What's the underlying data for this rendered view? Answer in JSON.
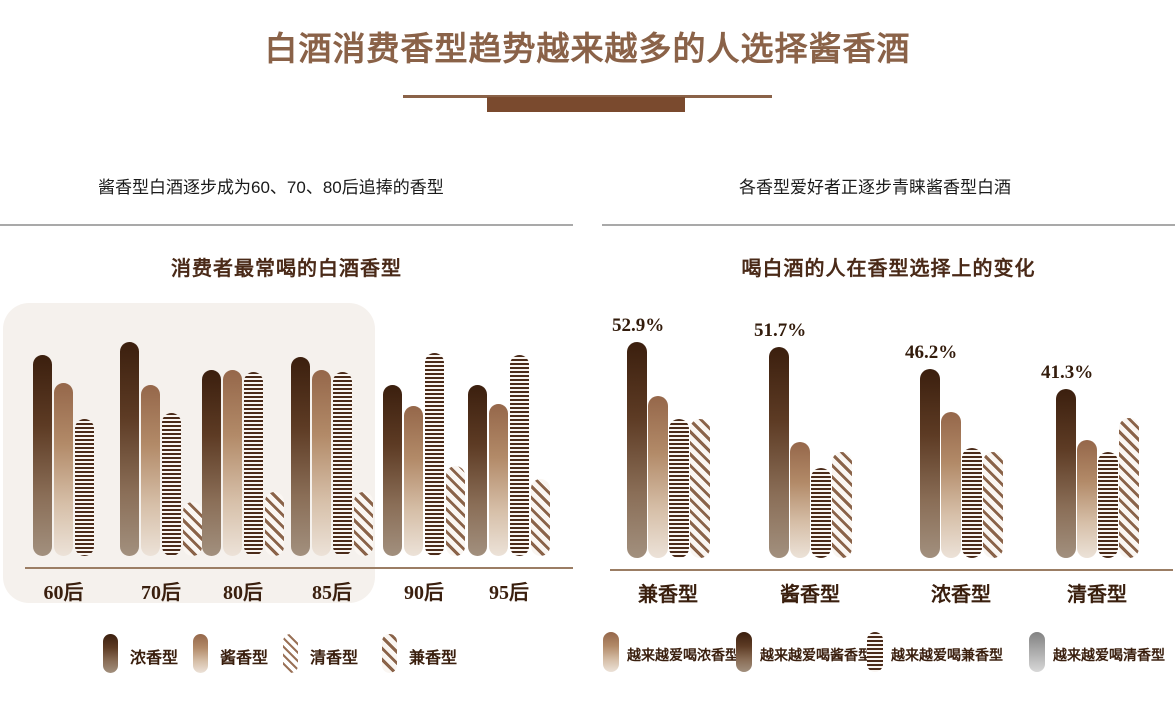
{
  "title": "白酒消费香型趋势越来越多的人选择酱香酒",
  "colors": {
    "accent": "#8a6248",
    "divider_block": "#7a4a2e",
    "chart_title": "#4a2a18",
    "category_label": "#3a1f0e",
    "highlight_bg": "#f5f1ed",
    "axis": "#9b7d64",
    "top_rule": "#a9a9a9"
  },
  "left_panel": {
    "subtitle": "酱香型白酒逐步成为60、70、80后追捧的香型",
    "chart_title": "消费者最常喝的白酒香型",
    "legend": [
      {
        "label": "浓香型",
        "style": "dark"
      },
      {
        "label": "酱香型",
        "style": "light"
      },
      {
        "label": "清香型",
        "style": "dstripe-thin"
      },
      {
        "label": "兼香型",
        "style": "dstripe"
      }
    ]
  },
  "right_panel": {
    "subtitle": "各香型爱好者正逐步青睐酱香型白酒",
    "chart_title": "喝白酒的人在香型选择上的变化",
    "legend": [
      {
        "label": "越来越爱喝浓香型",
        "style": "light"
      },
      {
        "label": "越来越爱喝酱香型",
        "style": "dark"
      },
      {
        "label": "越来越爱喝兼香型",
        "style": "hstripe"
      },
      {
        "label": "越来越爱喝清香型",
        "style": "gray"
      }
    ]
  },
  "chart_data": [
    {
      "id": "left-chart",
      "type": "bar",
      "title": "消费者最常喝的白酒香型",
      "subtitle": "酱香型白酒逐步成为60、70、80后追捧的香型",
      "categories": [
        "60后",
        "70后",
        "80后",
        "85后",
        "90后",
        "95后"
      ],
      "value_axis": "none shown — values are relative bar heights on a 0-100 scale",
      "series": [
        {
          "name": "浓香型",
          "style": "dark",
          "values": [
            94,
            100,
            87,
            93,
            80,
            80
          ]
        },
        {
          "name": "酱香型",
          "style": "light",
          "values": [
            81,
            80,
            87,
            87,
            70,
            71
          ]
        },
        {
          "name": "清香型",
          "style": "hstripe",
          "values": [
            64,
            67,
            86,
            86,
            95,
            94
          ]
        },
        {
          "name": "兼香型",
          "style": "dstripe",
          "values": [
            0,
            25,
            30,
            30,
            42,
            36
          ]
        }
      ],
      "highlighted_categories": [
        "60后",
        "70后",
        "80后",
        "85后"
      ],
      "legend_position": "bottom",
      "grid": false
    },
    {
      "id": "right-chart",
      "type": "bar",
      "title": "喝白酒的人在香型选择上的变化",
      "subtitle": "各香型爱好者正逐步青睐酱香型白酒",
      "categories": [
        "兼香型",
        "酱香型",
        "浓香型",
        "清香型"
      ],
      "data_labels": [
        "52.9%",
        "51.7%",
        "46.2%",
        "41.3%"
      ],
      "value_axis": "percent (only first series labeled; other series estimated from bar heights)",
      "series": [
        {
          "name": "越来越爱喝酱香型",
          "style": "dark",
          "labeled": true,
          "values": [
            52.9,
            51.7,
            46.2,
            41.3
          ]
        },
        {
          "name": "越来越爱喝浓香型",
          "style": "light",
          "estimated": true,
          "values": [
            39.7,
            28.4,
            35.8,
            28.9
          ]
        },
        {
          "name": "越来越爱喝兼香型",
          "style": "hstripe",
          "estimated": true,
          "values": [
            34.0,
            22.0,
            26.9,
            26.0
          ]
        },
        {
          "name": "越来越爱喝清香型",
          "style": "dstripe",
          "estimated": true,
          "values": [
            34.0,
            26.0,
            26.0,
            34.3
          ]
        }
      ],
      "legend_position": "bottom",
      "grid": false
    }
  ]
}
